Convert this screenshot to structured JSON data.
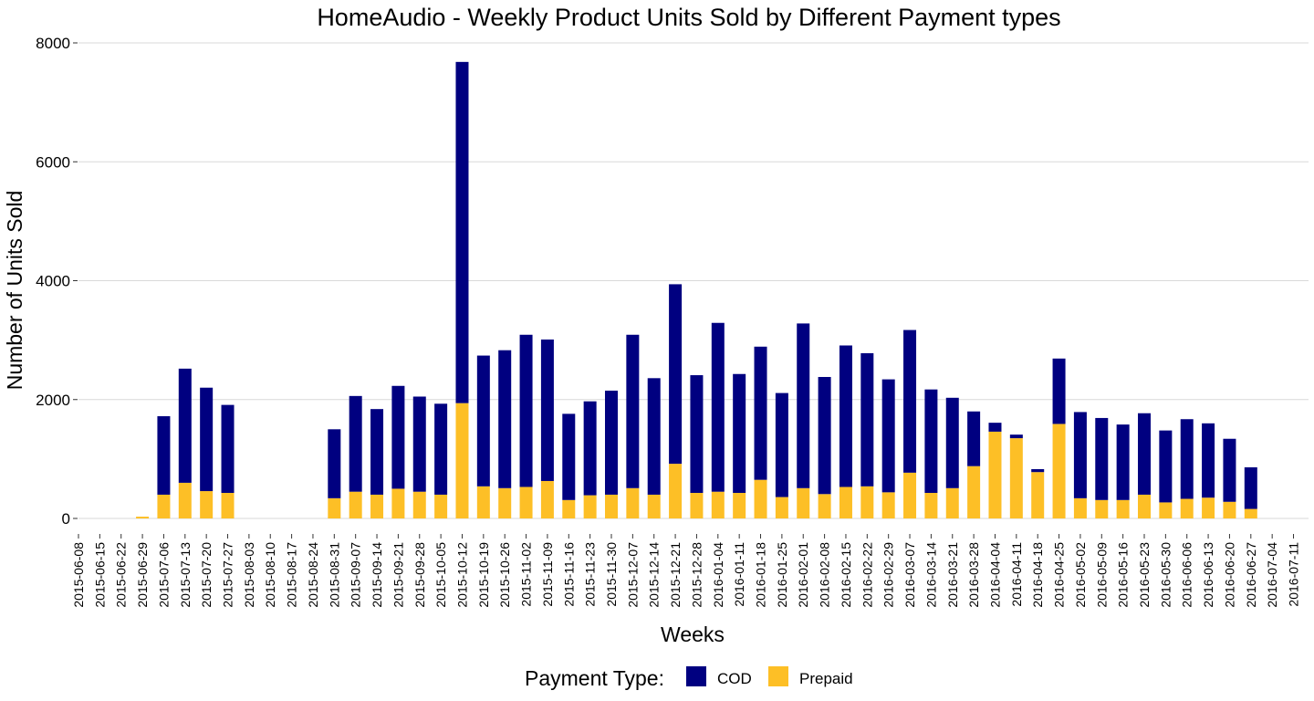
{
  "chart_data": {
    "type": "bar",
    "stacked": true,
    "title": "HomeAudio - Weekly Product Units Sold by Different Payment types",
    "xlabel": "Weeks",
    "ylabel": "Number of Units Sold",
    "ylim": [
      0,
      8000
    ],
    "yticks": [
      "0",
      "2000",
      "4000",
      "6000",
      "8000"
    ],
    "grid": "horizontal",
    "legend": {
      "title": "Payment Type:",
      "placement": "bottom"
    },
    "categories": [
      "2015-06-08",
      "2015-06-15",
      "2015-06-22",
      "2015-06-29",
      "2015-07-06",
      "2015-07-13",
      "2015-07-20",
      "2015-07-27",
      "2015-08-03",
      "2015-08-10",
      "2015-08-17",
      "2015-08-24",
      "2015-08-31",
      "2015-09-07",
      "2015-09-14",
      "2015-09-21",
      "2015-09-28",
      "2015-10-05",
      "2015-10-12",
      "2015-10-19",
      "2015-10-26",
      "2015-11-02",
      "2015-11-09",
      "2015-11-16",
      "2015-11-23",
      "2015-11-30",
      "2015-12-07",
      "2015-12-14",
      "2015-12-21",
      "2015-12-28",
      "2016-01-04",
      "2016-01-11",
      "2016-01-18",
      "2016-01-25",
      "2016-02-01",
      "2016-02-08",
      "2016-02-15",
      "2016-02-22",
      "2016-02-29",
      "2016-03-07",
      "2016-03-14",
      "2016-03-21",
      "2016-03-28",
      "2016-04-04",
      "2016-04-11",
      "2016-04-18",
      "2016-04-25",
      "2016-05-02",
      "2016-05-09",
      "2016-05-16",
      "2016-05-23",
      "2016-05-30",
      "2016-06-06",
      "2016-06-13",
      "2016-06-20",
      "2016-06-27",
      "2016-07-04",
      "2016-07-11"
    ],
    "series": [
      {
        "name": "COD",
        "color": "#000080",
        "values": [
          0,
          0,
          0,
          0,
          1320,
          1920,
          1740,
          1480,
          0,
          0,
          0,
          0,
          1160,
          1610,
          1440,
          1730,
          1600,
          1530,
          5740,
          2200,
          2320,
          2560,
          2380,
          1450,
          1580,
          1750,
          2580,
          1960,
          3020,
          1980,
          2840,
          2000,
          2240,
          1750,
          2770,
          1970,
          2380,
          2240,
          1900,
          2400,
          1740,
          1520,
          920,
          150,
          60,
          50,
          1100,
          1450,
          1380,
          1270,
          1370,
          1210,
          1340,
          1250,
          1060,
          700,
          0,
          0
        ]
      },
      {
        "name": "Prepaid",
        "color": "#FDBF26",
        "values": [
          0,
          0,
          0,
          30,
          400,
          600,
          460,
          430,
          0,
          0,
          0,
          0,
          340,
          450,
          400,
          500,
          450,
          400,
          1940,
          540,
          510,
          530,
          630,
          310,
          390,
          400,
          510,
          400,
          920,
          430,
          450,
          430,
          650,
          360,
          510,
          410,
          530,
          540,
          440,
          770,
          430,
          510,
          880,
          1460,
          1350,
          780,
          1590,
          340,
          310,
          310,
          400,
          270,
          330,
          350,
          280,
          160,
          0,
          0
        ]
      }
    ]
  }
}
